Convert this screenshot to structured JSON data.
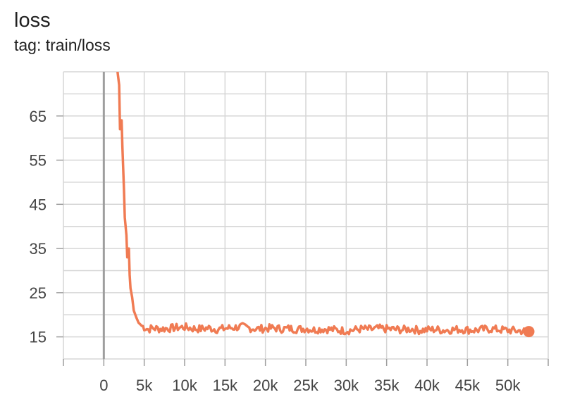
{
  "header": {
    "title": "loss",
    "subtitle": "tag: train/loss"
  },
  "chart_data": {
    "type": "line",
    "title": "loss",
    "subtitle": "tag: train/loss",
    "xlabel": "",
    "ylabel": "",
    "xlim": [
      -5000,
      55000
    ],
    "ylim": [
      10,
      75
    ],
    "x_ticks": [
      0,
      5000,
      10000,
      15000,
      20000,
      25000,
      30000,
      35000,
      40000,
      45000,
      50000
    ],
    "x_tick_labels": [
      "0",
      "5k",
      "10k",
      "15k",
      "20k",
      "25k",
      "30k",
      "35k",
      "40k",
      "45k",
      "50k"
    ],
    "y_ticks": [
      15,
      25,
      35,
      45,
      55,
      65
    ],
    "y_tick_labels": [
      "15",
      "25",
      "35",
      "45",
      "55",
      "65"
    ],
    "grid": true,
    "series_color": "#f07b53",
    "zero_line_color": "#9e9e9e",
    "series": [
      {
        "points": [
          [
            1700,
            75
          ],
          [
            1900,
            72
          ],
          [
            2000,
            62
          ],
          [
            2200,
            64
          ],
          [
            2300,
            58
          ],
          [
            2500,
            48
          ],
          [
            2600,
            42
          ],
          [
            2800,
            38
          ],
          [
            2900,
            33
          ],
          [
            3100,
            35
          ],
          [
            3200,
            29
          ],
          [
            3300,
            26
          ],
          [
            3500,
            24
          ],
          [
            3700,
            21
          ],
          [
            4000,
            19.5
          ],
          [
            4300,
            18.2
          ],
          [
            4700,
            17.5
          ],
          [
            5000,
            17.2
          ],
          [
            5500,
            16.7
          ],
          [
            6000,
            17.0
          ],
          [
            7000,
            16.8
          ],
          [
            8000,
            16.9
          ],
          [
            9000,
            17.1
          ],
          [
            10000,
            17.2
          ],
          [
            11000,
            16.9
          ],
          [
            12000,
            16.8
          ],
          [
            13000,
            17.0
          ],
          [
            14000,
            16.7
          ],
          [
            15000,
            16.9
          ],
          [
            16000,
            17.1
          ],
          [
            17000,
            17.3
          ],
          [
            18000,
            17.0
          ],
          [
            19000,
            16.8
          ],
          [
            20000,
            16.9
          ],
          [
            21000,
            17.0
          ],
          [
            22000,
            16.8
          ],
          [
            23000,
            16.9
          ],
          [
            24000,
            16.7
          ],
          [
            25000,
            16.9
          ],
          [
            26000,
            16.6
          ],
          [
            27000,
            16.8
          ],
          [
            28000,
            16.7
          ],
          [
            29000,
            16.5
          ],
          [
            30000,
            16.4
          ],
          [
            31000,
            16.6
          ],
          [
            32000,
            16.8
          ],
          [
            33000,
            16.7
          ],
          [
            34000,
            16.9
          ],
          [
            35000,
            16.8
          ],
          [
            36000,
            16.7
          ],
          [
            37000,
            16.6
          ],
          [
            38000,
            16.8
          ],
          [
            39000,
            16.5
          ],
          [
            40000,
            16.6
          ],
          [
            41000,
            16.7
          ],
          [
            42000,
            16.5
          ],
          [
            43000,
            16.6
          ],
          [
            44000,
            16.7
          ],
          [
            45000,
            16.6
          ],
          [
            46000,
            16.5
          ],
          [
            47000,
            16.7
          ],
          [
            48000,
            16.8
          ],
          [
            49000,
            16.6
          ],
          [
            50000,
            16.5
          ],
          [
            51000,
            16.4
          ],
          [
            52000,
            16.3
          ],
          [
            52600,
            16.2
          ]
        ]
      }
    ]
  }
}
